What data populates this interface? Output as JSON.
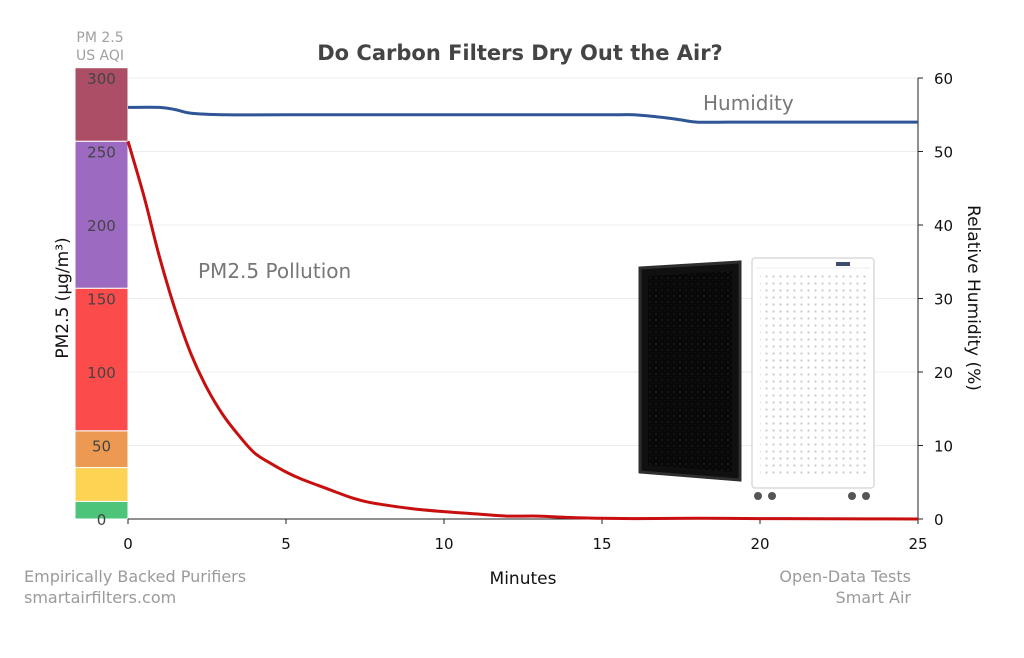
{
  "chart_data": {
    "type": "line",
    "title": "Do Carbon Filters Dry Out the Air?",
    "xlabel": "Minutes",
    "ylabel_left": "PM2.5 (µg/m³)",
    "ylabel_right": "Relative Humidity (%)",
    "x_ticks": [
      "0",
      "5",
      "10",
      "15",
      "20",
      "25"
    ],
    "y_left_ticks": [
      "0",
      "50",
      "100",
      "150",
      "200",
      "250",
      "300"
    ],
    "y_right_ticks": [
      "0",
      "10",
      "20",
      "30",
      "40",
      "50",
      "60"
    ],
    "xlim": [
      0,
      25
    ],
    "ylim_left": [
      0,
      300
    ],
    "ylim_right": [
      0,
      60
    ],
    "grid": true,
    "aqi_scale": {
      "header": [
        "PM 2.5",
        "US AQI"
      ],
      "bands": [
        {
          "from": 0,
          "to": 12,
          "color": "#4cc47a",
          "label": "0"
        },
        {
          "from": 12,
          "to": 35,
          "color": "#fcd352",
          "label": ""
        },
        {
          "from": 35,
          "to": 60,
          "color": "#ec9a52",
          "label": "50"
        },
        {
          "from": 60,
          "to": 157,
          "color": "#fb4b4b",
          "label": "100"
        },
        {
          "from": 157,
          "to": 257,
          "color": "#9c6ac0",
          "label": "200"
        },
        {
          "from": 257,
          "to": 307,
          "color": "#ac4e65",
          "label": "250"
        }
      ],
      "extra_labels": [
        {
          "value": 150,
          "label": "150"
        },
        {
          "value": 300,
          "label": "300"
        }
      ]
    },
    "series": [
      {
        "name": "PM2.5 Pollution",
        "axis": "left",
        "color": "#c80f0f",
        "x": [
          0,
          0.5,
          1,
          1.5,
          2,
          2.5,
          3,
          3.5,
          4,
          4.5,
          5,
          5.5,
          6,
          6.5,
          7,
          7.5,
          8,
          9,
          10,
          11,
          12,
          13,
          14,
          15,
          16,
          18,
          20,
          22,
          25
        ],
        "y": [
          257,
          220,
          178,
          142,
          112,
          89,
          71,
          57,
          45,
          38,
          32,
          27,
          23,
          19,
          15,
          12,
          10,
          7,
          5,
          3.5,
          2,
          2,
          1,
          0.5,
          0.3,
          0.5,
          0.3,
          0.2,
          0
        ]
      },
      {
        "name": "Humidity",
        "axis": "right",
        "color": "#2f5597",
        "x": [
          0,
          1,
          1.5,
          2,
          3,
          5,
          10,
          15,
          16,
          17,
          17.5,
          18,
          19,
          20,
          25
        ],
        "y": [
          56,
          56,
          55.7,
          55.2,
          55,
          55,
          55,
          55,
          55,
          54.6,
          54.3,
          54,
          54,
          54,
          54
        ]
      }
    ],
    "annotations": [
      {
        "text": "PM2.5 Pollution",
        "series": "PM2.5 Pollution"
      },
      {
        "text": "Humidity",
        "series": "Humidity"
      }
    ]
  },
  "footer": {
    "left": [
      "Empirically Backed Purifiers",
      "smartairfilters.com"
    ],
    "right": [
      "Open-Data Tests",
      "Smart Air"
    ]
  }
}
